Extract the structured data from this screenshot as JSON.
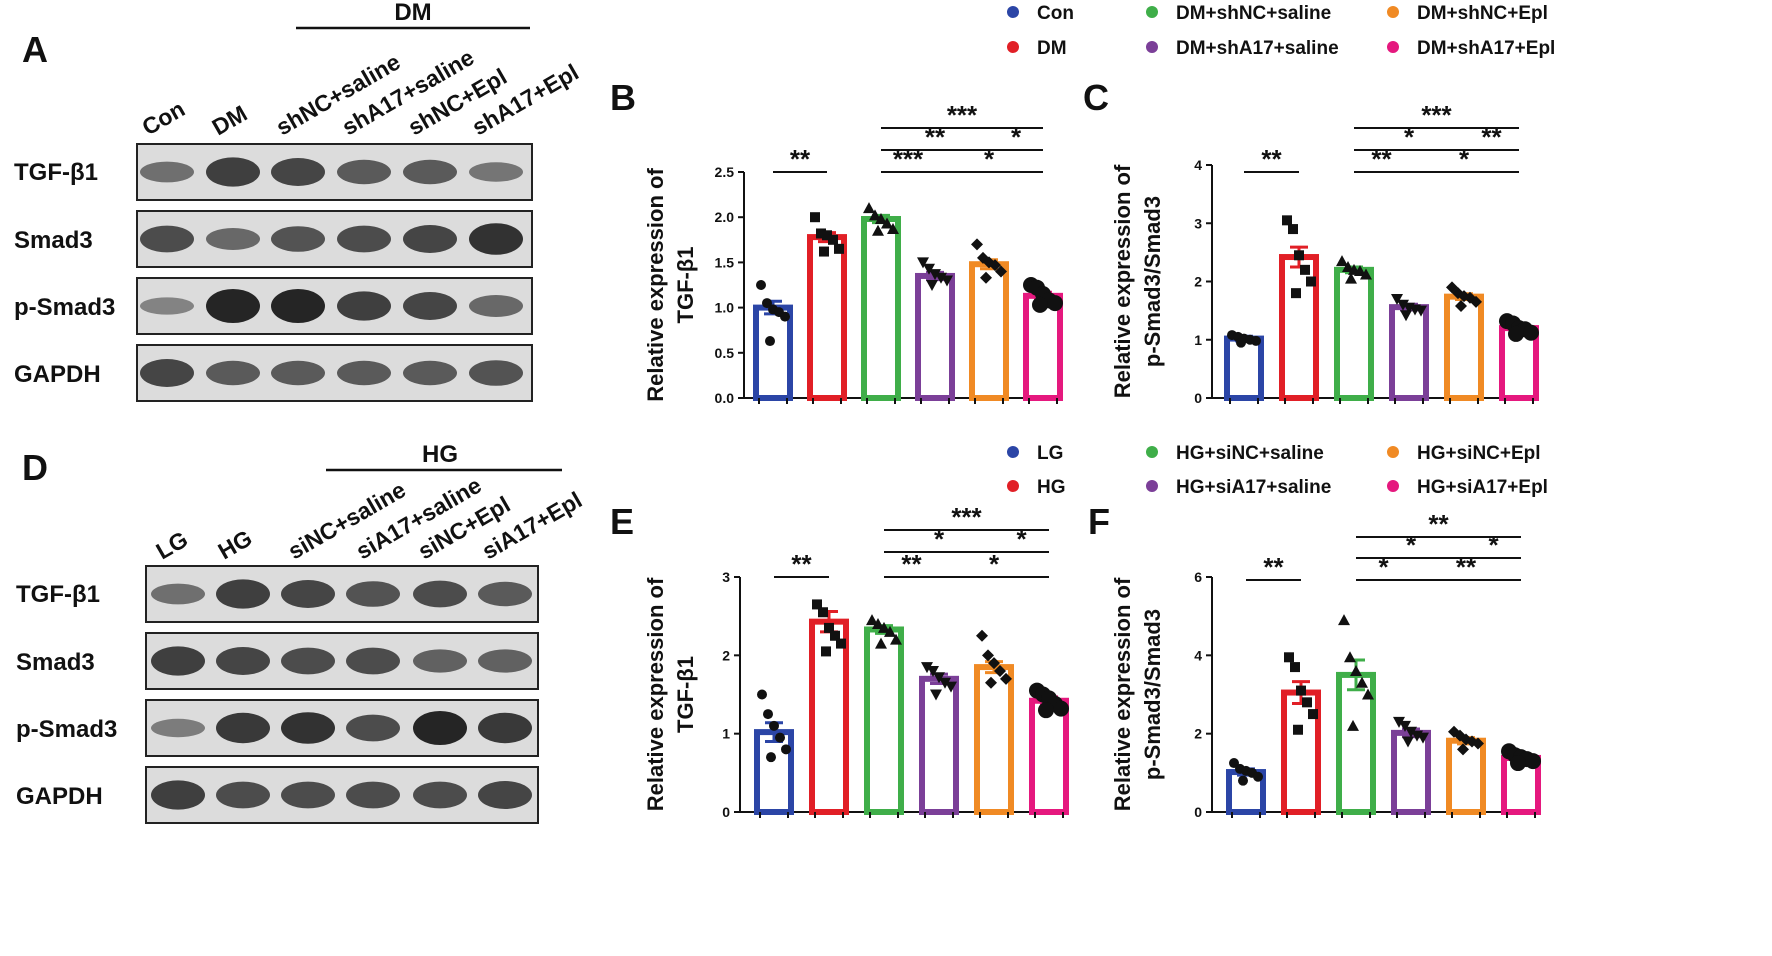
{
  "panel_letters": {
    "A": "A",
    "B": "B",
    "C": "C",
    "D": "D",
    "E": "E",
    "F": "F"
  },
  "colors": {
    "g1": "#2b45a6",
    "g2": "#e11f26",
    "g3": "#3fae49",
    "g4": "#7b3f98",
    "g5": "#f08a24",
    "g6": "#e5187e"
  },
  "legend_top": [
    "Con",
    "DM",
    "DM+shNC+saline",
    "DM+shA17+saline",
    "DM+shNC+Epl",
    "DM+shA17+Epl"
  ],
  "legend_bottom": [
    "LG",
    "HG",
    "HG+siNC+saline",
    "HG+siA17+saline",
    "HG+siNC+Epl",
    "HG+siA17+Epl"
  ],
  "blot_A": {
    "group_label": "DM",
    "lanes": [
      "Con",
      "DM",
      "shNC+saline",
      "shA17+saline",
      "shNC+Epl",
      "shA17+Epl"
    ],
    "proteins": [
      "TGF-β1",
      "Smad3",
      "p-Smad3",
      "GAPDH"
    ]
  },
  "blot_D": {
    "group_label": "HG",
    "lanes": [
      "LG",
      "HG",
      "siNC+saline",
      "siA17+saline",
      "siNC+Epl",
      "siA17+Epl"
    ],
    "proteins": [
      "TGF-β1",
      "Smad3",
      "p-Smad3",
      "GAPDH"
    ]
  },
  "chart_data": [
    {
      "panel": "B",
      "type": "bar",
      "ylabel_line1": "Relative expression of",
      "ylabel_line2": "TGF-β1",
      "ylim": [
        0,
        2.5
      ],
      "yticks": [
        "0.0",
        "0.5",
        "1.0",
        "1.5",
        "2.0",
        "2.5"
      ],
      "categories": [
        "Con",
        "DM",
        "DM+shNC+saline",
        "DM+shA17+saline",
        "DM+shNC+Epl",
        "DM+shA17+Epl"
      ],
      "values": [
        1.0,
        1.78,
        1.98,
        1.35,
        1.48,
        1.13
      ],
      "sem": [
        0.07,
        0.05,
        0.04,
        0.04,
        0.05,
        0.04
      ],
      "points": [
        [
          1.25,
          1.05,
          0.98,
          0.95,
          0.9,
          0.63
        ],
        [
          2.0,
          1.82,
          1.8,
          1.75,
          1.65,
          1.62
        ],
        [
          2.1,
          2.02,
          1.98,
          1.93,
          1.87,
          1.85
        ],
        [
          1.5,
          1.43,
          1.37,
          1.33,
          1.3,
          1.25
        ],
        [
          1.7,
          1.55,
          1.5,
          1.47,
          1.4,
          1.33
        ],
        [
          1.25,
          1.22,
          1.15,
          1.08,
          1.05,
          1.03
        ]
      ],
      "comparisons": [
        {
          "from": 0,
          "to": 1,
          "label": "**",
          "level": 0
        },
        {
          "from": 2,
          "to": 3,
          "label": "***",
          "level": 0
        },
        {
          "from": 3,
          "to": 5,
          "label": "*",
          "level": 0
        },
        {
          "from": 2,
          "to": 4,
          "label": "**",
          "level": 1
        },
        {
          "from": 4,
          "to": 5,
          "label": "*",
          "level": 1
        },
        {
          "from": 2,
          "to": 5,
          "label": "***",
          "level": 2
        }
      ]
    },
    {
      "panel": "C",
      "type": "bar",
      "ylabel_line1": "Relative expression of",
      "ylabel_line2": "p-Smad3/Smad3",
      "ylim": [
        0,
        4
      ],
      "yticks": [
        "0",
        "1",
        "2",
        "3",
        "4"
      ],
      "categories": [
        "Con",
        "DM",
        "DM+shNC+saline",
        "DM+shA17+saline",
        "DM+shNC+Epl",
        "DM+shA17+Epl"
      ],
      "values": [
        1.02,
        2.42,
        2.2,
        1.56,
        1.74,
        1.2
      ],
      "sem": [
        0.04,
        0.17,
        0.05,
        0.05,
        0.05,
        0.05
      ],
      "points": [
        [
          1.08,
          1.05,
          1.02,
          1.0,
          0.98,
          0.95
        ],
        [
          3.05,
          2.9,
          2.45,
          2.2,
          2.0,
          1.8
        ],
        [
          2.35,
          2.25,
          2.2,
          2.18,
          2.12,
          2.05
        ],
        [
          1.7,
          1.6,
          1.55,
          1.52,
          1.5,
          1.42
        ],
        [
          1.9,
          1.8,
          1.75,
          1.72,
          1.65,
          1.58
        ],
        [
          1.32,
          1.28,
          1.2,
          1.18,
          1.12,
          1.1
        ]
      ],
      "comparisons": [
        {
          "from": 0,
          "to": 1,
          "label": "**",
          "level": 0
        },
        {
          "from": 2,
          "to": 3,
          "label": "**",
          "level": 0
        },
        {
          "from": 3,
          "to": 5,
          "label": "*",
          "level": 0
        },
        {
          "from": 2,
          "to": 4,
          "label": "*",
          "level": 1
        },
        {
          "from": 4,
          "to": 5,
          "label": "**",
          "level": 1
        },
        {
          "from": 2,
          "to": 5,
          "label": "***",
          "level": 2
        }
      ]
    },
    {
      "panel": "E",
      "type": "bar",
      "ylabel_line1": "Relative expression of",
      "ylabel_line2": "TGF-β1",
      "ylim": [
        0,
        3
      ],
      "yticks": [
        "0",
        "1",
        "2",
        "3"
      ],
      "categories": [
        "LG",
        "HG",
        "HG+siNC+saline",
        "HG+siA17+saline",
        "HG+siNC+Epl",
        "HG+siA17+Epl"
      ],
      "values": [
        1.02,
        2.43,
        2.33,
        1.7,
        1.85,
        1.42
      ],
      "sem": [
        0.12,
        0.13,
        0.05,
        0.06,
        0.07,
        0.05
      ],
      "points": [
        [
          1.5,
          1.25,
          1.1,
          0.95,
          0.8,
          0.7
        ],
        [
          2.65,
          2.55,
          2.35,
          2.25,
          2.15,
          2.05
        ],
        [
          2.45,
          2.4,
          2.35,
          2.3,
          2.2,
          2.15
        ],
        [
          1.85,
          1.8,
          1.72,
          1.65,
          1.6,
          1.5
        ],
        [
          2.25,
          2.0,
          1.9,
          1.8,
          1.7,
          1.65
        ],
        [
          1.55,
          1.5,
          1.45,
          1.38,
          1.32,
          1.3
        ]
      ],
      "comparisons": [
        {
          "from": 0,
          "to": 1,
          "label": "**",
          "level": 0
        },
        {
          "from": 2,
          "to": 3,
          "label": "**",
          "level": 0
        },
        {
          "from": 3,
          "to": 5,
          "label": "*",
          "level": 0
        },
        {
          "from": 2,
          "to": 4,
          "label": "*",
          "level": 1
        },
        {
          "from": 4,
          "to": 5,
          "label": "*",
          "level": 1
        },
        {
          "from": 2,
          "to": 5,
          "label": "***",
          "level": 2
        }
      ]
    },
    {
      "panel": "F",
      "type": "bar",
      "ylabel_line1": "Relative expression of",
      "ylabel_line2": "p-Smad3/Smad3",
      "ylim": [
        0,
        6
      ],
      "yticks": [
        "0",
        "2",
        "4",
        "6"
      ],
      "categories": [
        "LG",
        "HG",
        "HG+siNC+saline",
        "HG+siA17+saline",
        "HG+siNC+Epl",
        "HG+siA17+Epl"
      ],
      "values": [
        1.02,
        3.05,
        3.5,
        2.02,
        1.82,
        1.38
      ],
      "sem": [
        0.08,
        0.28,
        0.38,
        0.1,
        0.08,
        0.07
      ],
      "points": [
        [
          1.25,
          1.1,
          1.05,
          1.0,
          0.9,
          0.8
        ],
        [
          3.95,
          3.7,
          3.1,
          2.8,
          2.5,
          2.1
        ],
        [
          4.9,
          3.95,
          3.6,
          3.3,
          3.0,
          2.2
        ],
        [
          2.3,
          2.2,
          2.05,
          1.95,
          1.9,
          1.8
        ],
        [
          2.05,
          1.95,
          1.85,
          1.8,
          1.75,
          1.6
        ],
        [
          1.55,
          1.45,
          1.4,
          1.35,
          1.3,
          1.25
        ]
      ],
      "comparisons": [
        {
          "from": 0,
          "to": 1,
          "label": "**",
          "level": 0
        },
        {
          "from": 2,
          "to": 3,
          "label": "*",
          "level": 0
        },
        {
          "from": 3,
          "to": 5,
          "label": "**",
          "level": 0
        },
        {
          "from": 2,
          "to": 4,
          "label": "*",
          "level": 1
        },
        {
          "from": 4,
          "to": 5,
          "label": "*",
          "level": 1
        },
        {
          "from": 2,
          "to": 5,
          "label": "**",
          "level": 2
        }
      ]
    }
  ]
}
